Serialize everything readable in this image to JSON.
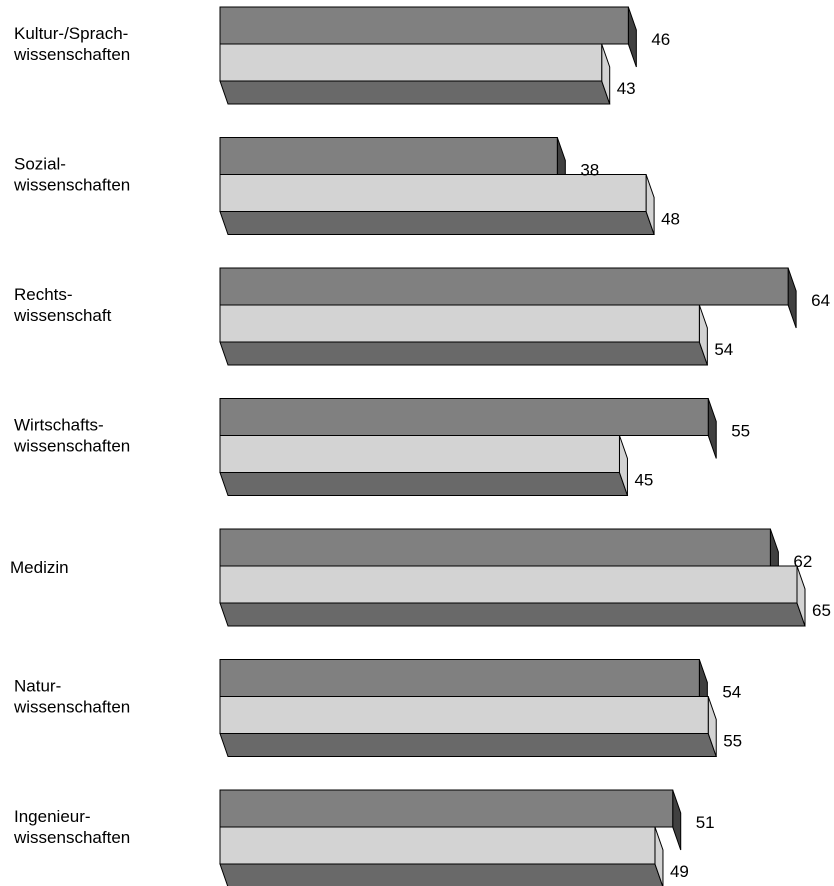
{
  "chart_data": {
    "type": "bar",
    "orientation": "horizontal",
    "style": "3d",
    "categories": [
      [
        "Kultur-/Sprach-",
        "wissenschaften"
      ],
      [
        "Sozial-",
        "wissenschaften"
      ],
      [
        "Rechts-",
        "wissenschaft"
      ],
      [
        "Wirtschafts-",
        "wissenschaften"
      ],
      [
        "Medizin"
      ],
      [
        "Natur-",
        "wissenschaften"
      ],
      [
        "Ingenieur-",
        "wissenschaften"
      ]
    ],
    "series": [
      {
        "values": [
          46,
          38,
          64,
          55,
          62,
          54,
          51
        ],
        "color": "#808080"
      },
      {
        "values": [
          43,
          48,
          54,
          45,
          65,
          55,
          49
        ],
        "color": "#d3d3d3"
      }
    ],
    "xlim": [
      0,
      74
    ],
    "legend": "none",
    "grid": false,
    "colors": {
      "top_face": "#696969",
      "side_face": "#404040",
      "outline": "#000000"
    }
  }
}
